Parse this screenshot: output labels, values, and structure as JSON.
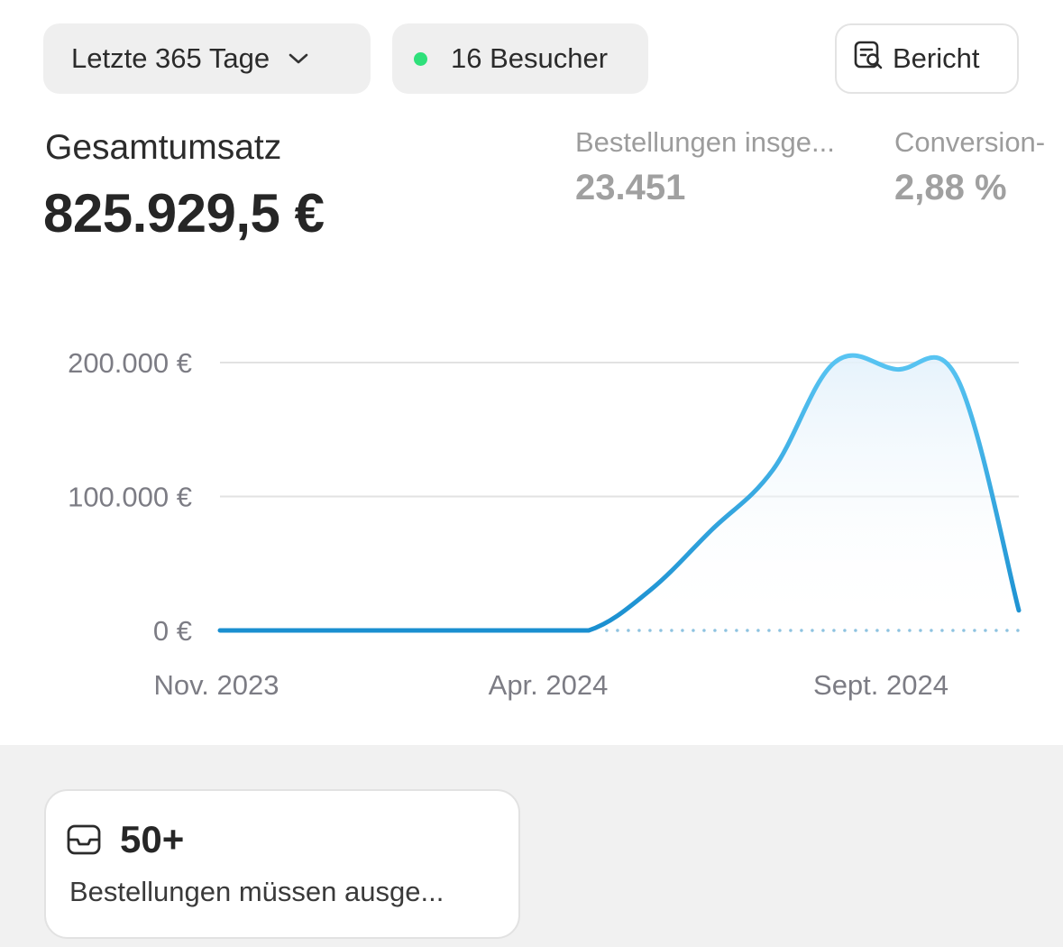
{
  "filters": {
    "range_label": "Letzte 365 Tage",
    "visitors_label": "16 Besucher",
    "visitors_dot_color": "#2ee07a"
  },
  "report_button": {
    "label": "Bericht",
    "icon": "report-search-icon"
  },
  "metrics": {
    "total": {
      "label": "Gesamtumsatz",
      "value": "825.929,5 €"
    },
    "orders": {
      "label": "Bestellungen insge...",
      "value": "23.451"
    },
    "conversion": {
      "label": "Conversion-",
      "value": "2,88 %"
    }
  },
  "chart_data": {
    "type": "area",
    "y_ticks": [
      "0 €",
      "100.000 €",
      "200.000 €"
    ],
    "ylim": [
      0,
      200000
    ],
    "x_tick_labels": [
      "Nov. 2023",
      "Apr. 2024",
      "Sept. 2024"
    ],
    "line_color": "#1a8fd0",
    "line_color_light": "#58c4f2",
    "series": [
      {
        "x": [
          "2023-10",
          "2023-11",
          "2023-12",
          "2024-01",
          "2024-02",
          "2024-03",
          "2024-04",
          "2024-05",
          "2024-06",
          "2024-07",
          "2024-08",
          "2024-09",
          "2024-10",
          "2024-11"
        ],
        "values": [
          0,
          0,
          0,
          0,
          0,
          0,
          0,
          30000,
          75000,
          120000,
          200000,
          195000,
          188000,
          15000
        ]
      }
    ]
  },
  "todo": {
    "count": "50+",
    "description": "Bestellungen müssen ausge...",
    "icon": "inbox-icon"
  }
}
